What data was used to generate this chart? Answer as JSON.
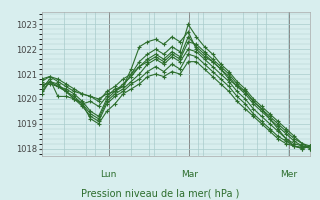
{
  "title": "",
  "xlabel": "Pression niveau de la mer( hPa )",
  "background_color": "#d8eeee",
  "grid_color": "#aacccc",
  "line_color": "#2d6e2d",
  "marker_color": "#2d6e2d",
  "ylim": [
    1017.7,
    1023.5
  ],
  "yticks": [
    1018,
    1019,
    1020,
    1021,
    1022,
    1023
  ],
  "day_labels": [
    "Lun",
    "Mar",
    "Mer"
  ],
  "day_positions": [
    0.25,
    0.55,
    0.92
  ],
  "series": [
    [
      1020.4,
      1020.8,
      1020.1,
      1020.1,
      1020.0,
      1019.8,
      1019.9,
      1019.7,
      1020.1,
      1020.4,
      1020.5,
      1021.2,
      1022.1,
      1022.3,
      1022.4,
      1022.2,
      1022.5,
      1022.3,
      1022.7,
      1022.0,
      1021.7,
      1021.5,
      1021.2,
      1020.8,
      1020.5,
      1020.3,
      1019.9,
      1019.6,
      1019.2,
      1018.8,
      1018.4,
      1018.1,
      1018.0,
      1018.1
    ],
    [
      1020.8,
      1020.9,
      1020.7,
      1020.5,
      1020.3,
      1020.2,
      1020.1,
      1020.0,
      1020.2,
      1020.3,
      1020.5,
      1021.0,
      1021.5,
      1021.8,
      1022.0,
      1021.8,
      1022.1,
      1021.9,
      1023.0,
      1022.5,
      1022.1,
      1021.8,
      1021.4,
      1021.1,
      1020.7,
      1020.4,
      1020.0,
      1019.7,
      1019.4,
      1019.1,
      1018.8,
      1018.5,
      1018.2,
      1018.0
    ],
    [
      1020.6,
      1020.6,
      1020.5,
      1020.4,
      1020.2,
      1019.9,
      1019.5,
      1019.3,
      1020.0,
      1020.3,
      1020.6,
      1020.9,
      1021.3,
      1021.6,
      1021.8,
      1021.6,
      1021.9,
      1021.7,
      1022.5,
      1022.1,
      1021.8,
      1021.5,
      1021.2,
      1020.9,
      1020.5,
      1020.2,
      1019.8,
      1019.5,
      1019.2,
      1018.9,
      1018.6,
      1018.3,
      1018.1,
      1018.0
    ],
    [
      1020.5,
      1020.7,
      1020.5,
      1020.3,
      1020.1,
      1019.8,
      1019.4,
      1019.2,
      1019.9,
      1020.2,
      1020.4,
      1020.7,
      1021.0,
      1021.4,
      1021.6,
      1021.4,
      1021.7,
      1021.5,
      1022.0,
      1021.9,
      1021.6,
      1021.3,
      1021.0,
      1020.7,
      1020.3,
      1020.0,
      1019.6,
      1019.3,
      1019.0,
      1018.7,
      1018.4,
      1018.2,
      1018.1,
      1018.1
    ],
    [
      1020.3,
      1020.7,
      1020.6,
      1020.3,
      1020.0,
      1019.7,
      1019.3,
      1019.1,
      1019.8,
      1020.1,
      1020.3,
      1020.6,
      1020.8,
      1021.1,
      1021.3,
      1021.1,
      1021.4,
      1021.2,
      1021.8,
      1021.7,
      1021.4,
      1021.1,
      1020.8,
      1020.5,
      1020.1,
      1019.8,
      1019.4,
      1019.1,
      1018.8,
      1018.5,
      1018.3,
      1018.1,
      1018.05,
      1018.1
    ],
    [
      1020.2,
      1020.7,
      1020.5,
      1020.3,
      1020.0,
      1019.8,
      1019.2,
      1019.0,
      1019.5,
      1019.8,
      1020.2,
      1020.4,
      1020.6,
      1020.9,
      1021.0,
      1020.9,
      1021.1,
      1021.0,
      1021.5,
      1021.5,
      1021.2,
      1020.9,
      1020.6,
      1020.3,
      1019.9,
      1019.6,
      1019.3,
      1019.0,
      1018.7,
      1018.4,
      1018.2,
      1018.1,
      1018.0,
      1018.1
    ],
    [
      1020.7,
      1020.9,
      1020.8,
      1020.6,
      1020.4,
      1020.2,
      1020.1,
      1019.9,
      1020.3,
      1020.5,
      1020.8,
      1021.0,
      1021.3,
      1021.5,
      1021.7,
      1021.5,
      1021.8,
      1021.6,
      1022.3,
      1022.2,
      1021.9,
      1021.6,
      1021.3,
      1021.0,
      1020.6,
      1020.3,
      1019.9,
      1019.6,
      1019.3,
      1019.0,
      1018.7,
      1018.4,
      1018.2,
      1018.1
    ]
  ]
}
